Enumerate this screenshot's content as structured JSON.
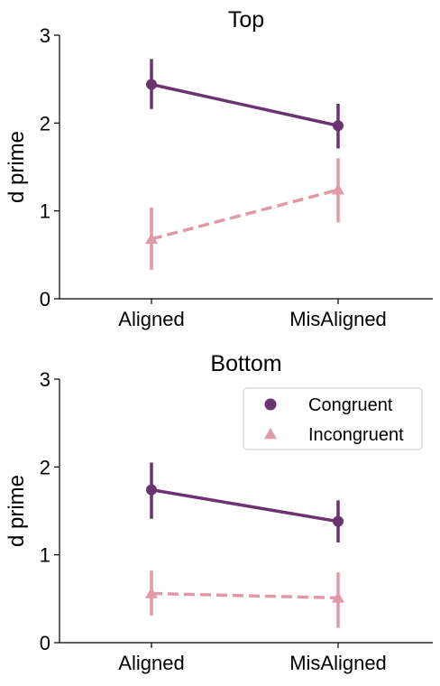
{
  "colors": {
    "congruent": "#6b3370",
    "incongruent": "#e09aa7",
    "axis": "#000000",
    "legend_border": "#cccccc"
  },
  "chart_data": [
    {
      "type": "line",
      "title": "Top",
      "xlabel": "",
      "ylabel": "d prime",
      "categories": [
        "Aligned",
        "MisAligned"
      ],
      "ylim": [
        0,
        3
      ],
      "yticks": [
        "0",
        "1",
        "2",
        "3"
      ],
      "grid": false,
      "legend": null,
      "series": [
        {
          "name": "Congruent",
          "marker": "circle",
          "linestyle": "solid",
          "color": "#6b3370",
          "values": [
            2.44,
            1.97
          ],
          "error_low": [
            2.16,
            1.71
          ],
          "error_high": [
            2.73,
            2.22
          ]
        },
        {
          "name": "Incongruent",
          "marker": "triangle",
          "linestyle": "dashed",
          "color": "#e09aa7",
          "values": [
            0.68,
            1.24
          ],
          "error_low": [
            0.33,
            0.87
          ],
          "error_high": [
            1.04,
            1.6
          ]
        }
      ]
    },
    {
      "type": "line",
      "title": "Bottom",
      "xlabel": "",
      "ylabel": "d prime",
      "categories": [
        "Aligned",
        "MisAligned"
      ],
      "ylim": [
        0,
        3
      ],
      "yticks": [
        "0",
        "1",
        "2",
        "3"
      ],
      "grid": false,
      "legend": "top-right",
      "series": [
        {
          "name": "Congruent",
          "marker": "circle",
          "linestyle": "solid",
          "color": "#6b3370",
          "values": [
            1.74,
            1.38
          ],
          "error_low": [
            1.41,
            1.14
          ],
          "error_high": [
            2.05,
            1.62
          ]
        },
        {
          "name": "Incongruent",
          "marker": "triangle",
          "linestyle": "dashed",
          "color": "#e09aa7",
          "values": [
            0.56,
            0.51
          ],
          "error_low": [
            0.31,
            0.17
          ],
          "error_high": [
            0.82,
            0.8
          ]
        }
      ]
    }
  ]
}
